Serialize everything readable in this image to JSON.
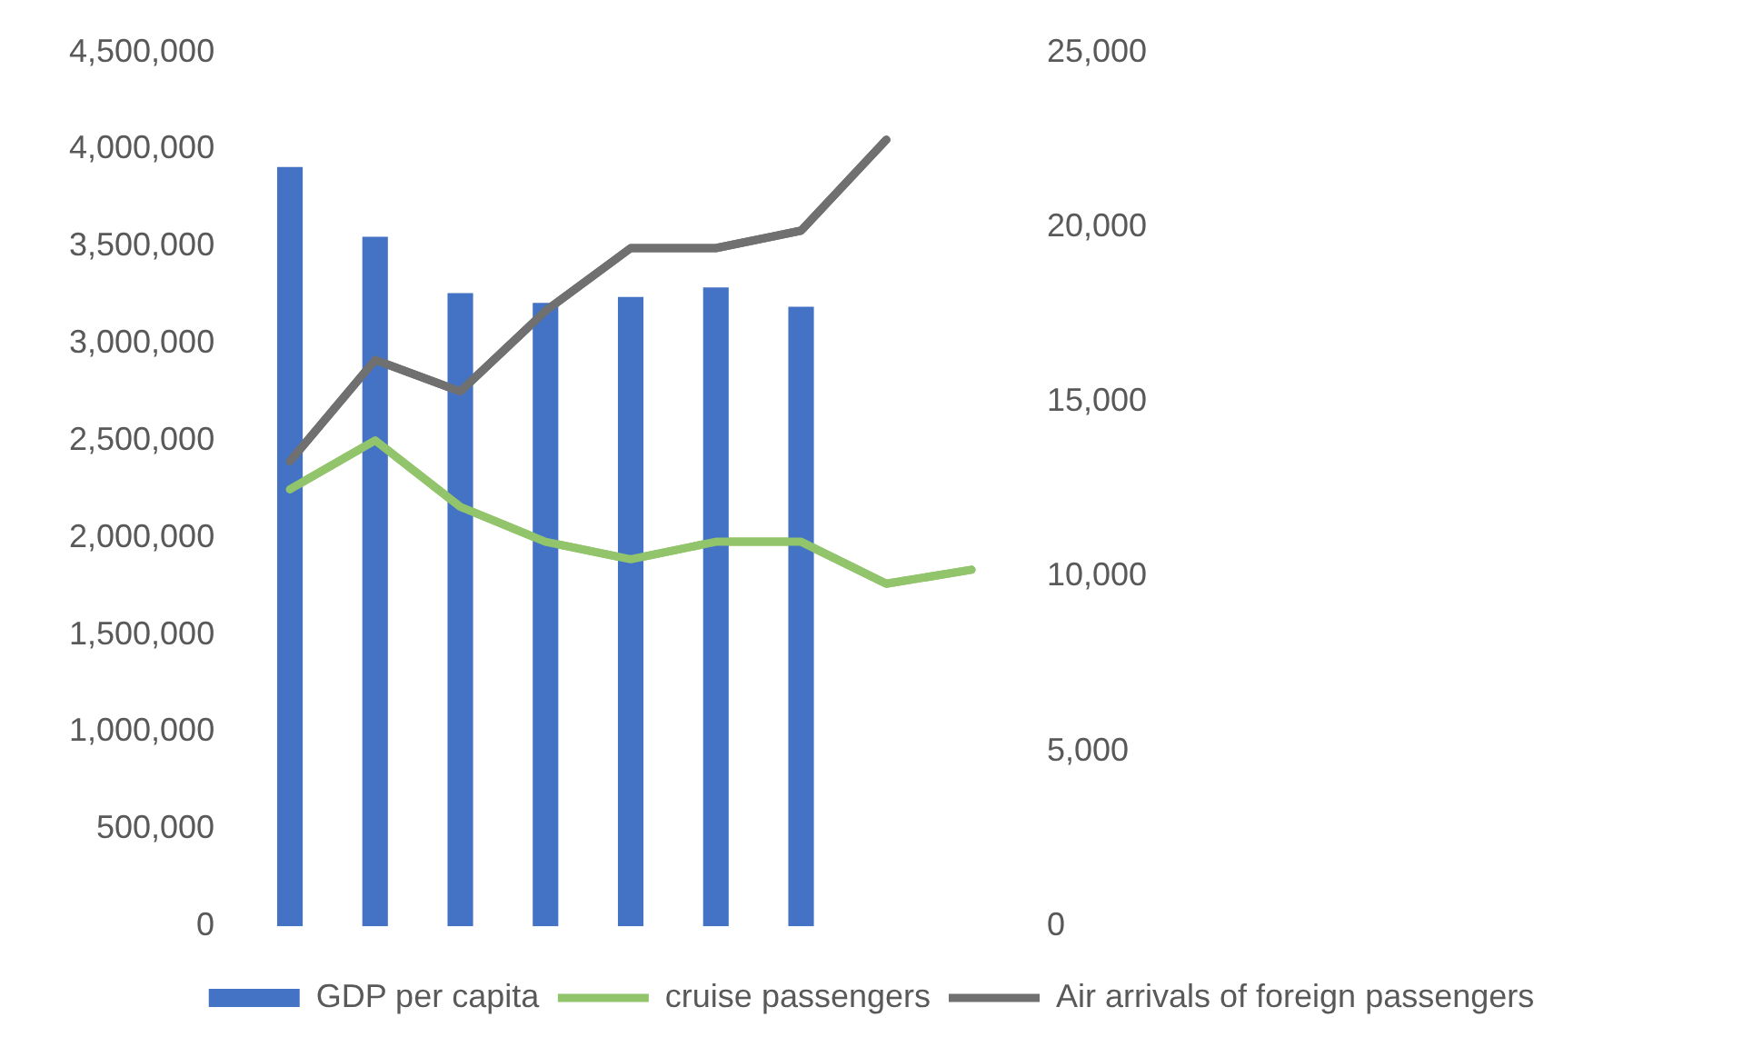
{
  "chart_data": {
    "type": "bar",
    "categories": [
      null,
      null,
      null,
      null,
      null,
      null,
      null,
      null,
      null
    ],
    "series": [
      {
        "name": "GDP per capita",
        "type": "bar",
        "color": "#4472c4",
        "values": [
          3910000,
          3550000,
          3260000,
          3210000,
          3240000,
          3290000,
          3190000,
          null,
          null
        ]
      },
      {
        "name": "cruise passengers",
        "type": "line",
        "axis": "y2",
        "color": "#92c46c",
        "values": [
          12500,
          13900,
          12000,
          11000,
          10500,
          11000,
          11000,
          9800,
          10200
        ]
      },
      {
        "name": "Air arrivals of foreign passengers",
        "type": "line",
        "axis": "y2",
        "color": "#707070",
        "values": [
          13300,
          16200,
          15300,
          17600,
          19400,
          19400,
          19900,
          22500,
          null
        ]
      }
    ],
    "ylim": [
      0,
      4500000
    ],
    "yticks": [
      {
        "value": 0,
        "label": "0"
      },
      {
        "value": 500000,
        "label": "500,000"
      },
      {
        "value": 1000000,
        "label": "1,000,000"
      },
      {
        "value": 1500000,
        "label": "1,500,000"
      },
      {
        "value": 2000000,
        "label": "2,000,000"
      },
      {
        "value": 2500000,
        "label": "2,500,000"
      },
      {
        "value": 3000000,
        "label": "3,000,000"
      },
      {
        "value": 3500000,
        "label": "3,500,000"
      },
      {
        "value": 4000000,
        "label": "4,000,000"
      },
      {
        "value": 4500000,
        "label": "4,500,000"
      }
    ],
    "y2lim": [
      0,
      25000
    ],
    "y2ticks": [
      {
        "value": 0,
        "label": "0"
      },
      {
        "value": 5000,
        "label": "5,000"
      },
      {
        "value": 10000,
        "label": "10,000"
      },
      {
        "value": 15000,
        "label": "15,000"
      },
      {
        "value": 20000,
        "label": "20,000"
      },
      {
        "value": 25000,
        "label": "25,000"
      }
    ],
    "grid": false,
    "legend": "bottom",
    "marker": "none",
    "line_style": "solid"
  }
}
